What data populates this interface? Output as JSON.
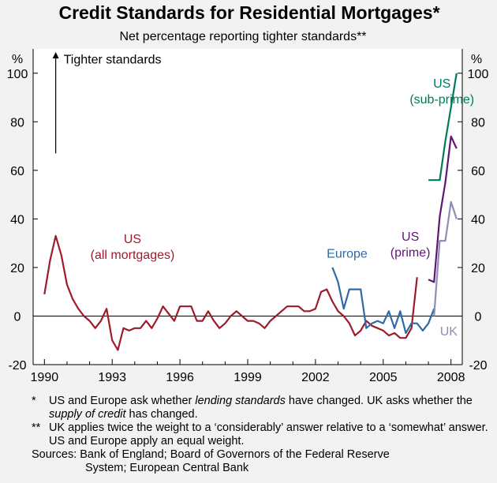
{
  "chart_data": {
    "type": "line",
    "title": "Credit Standards for Residential Mortgages*",
    "subtitle": "Net percentage reporting tighter standards**",
    "ylabel_left": "%",
    "ylabel_right": "%",
    "ylim": [
      -20,
      110
    ],
    "yticks": [
      -20,
      0,
      20,
      40,
      60,
      80,
      100
    ],
    "xlim": [
      1989.5,
      2008.5
    ],
    "xticks": [
      1990,
      1993,
      1996,
      1999,
      2002,
      2005,
      2008
    ],
    "annotation": "Tighter standards",
    "series": [
      {
        "name": "US (all mortgages)",
        "label_lines": [
          "US",
          "(all mortgages)"
        ],
        "color": "#9e1c2a",
        "x": [
          1990.0,
          1990.25,
          1990.5,
          1990.75,
          1991.0,
          1991.25,
          1991.5,
          1991.75,
          1992.0,
          1992.25,
          1992.5,
          1992.75,
          1993.0,
          1993.25,
          1993.5,
          1993.75,
          1994.0,
          1994.25,
          1994.5,
          1994.75,
          1995.0,
          1995.25,
          1995.5,
          1995.75,
          1996.0,
          1996.25,
          1996.5,
          1996.75,
          1997.0,
          1997.25,
          1997.5,
          1997.75,
          1998.0,
          1998.25,
          1998.5,
          1998.75,
          1999.0,
          1999.25,
          1999.5,
          1999.75,
          2000.0,
          2000.25,
          2000.5,
          2000.75,
          2001.0,
          2001.25,
          2001.5,
          2001.75,
          2002.0,
          2002.25,
          2002.5,
          2002.75,
          2003.0,
          2003.25,
          2003.5,
          2003.75,
          2004.0,
          2004.25,
          2004.5,
          2004.75,
          2005.0,
          2005.25,
          2005.5,
          2005.75,
          2006.0,
          2006.25,
          2006.5
        ],
        "values": [
          9,
          23,
          33,
          25,
          13,
          7,
          3,
          0,
          -2,
          -5,
          -2,
          3,
          -10,
          -14,
          -5,
          -6,
          -5,
          -5,
          -2,
          -5,
          -1,
          4,
          1,
          -2,
          4,
          4,
          4,
          -2,
          -2,
          2,
          -2,
          -5,
          -3,
          0,
          2,
          0,
          -2,
          -2,
          -3,
          -5,
          -2,
          0,
          2,
          4,
          4,
          4,
          2,
          2,
          3,
          10,
          11,
          6,
          2,
          0,
          -3,
          -8,
          -6,
          -2,
          -4,
          -5,
          -6,
          -8,
          -7,
          -9,
          -9,
          -5,
          16
        ]
      },
      {
        "name": "Europe",
        "label_lines": [
          "Europe"
        ],
        "color": "#2e6aa8",
        "x": [
          2002.75,
          2003.0,
          2003.25,
          2003.5,
          2003.75,
          2004.0,
          2004.25,
          2004.5,
          2004.75,
          2005.0,
          2005.25,
          2005.5,
          2005.75,
          2006.0,
          2006.25,
          2006.5,
          2006.75,
          2007.0,
          2007.25
        ],
        "values": [
          20,
          14,
          3,
          11,
          11,
          11,
          -5,
          -3,
          -2,
          -3,
          2,
          -5,
          2,
          -7,
          -3,
          -3,
          -6,
          -3,
          3
        ]
      },
      {
        "name": "US (sub-prime)",
        "label_lines": [
          "US",
          "(sub-prime)"
        ],
        "color": "#007a5e",
        "x": [
          2007.0,
          2007.25,
          2007.5,
          2007.75,
          2008.0,
          2008.25
        ],
        "values": [
          56,
          56,
          56,
          72,
          86,
          100
        ]
      },
      {
        "name": "US (prime)",
        "label_lines": [
          "US",
          "(prime)"
        ],
        "color": "#5e1773",
        "x": [
          2007.0,
          2007.25,
          2007.5,
          2007.75,
          2008.0,
          2008.25
        ],
        "values": [
          15,
          14,
          41,
          55,
          74,
          69
        ]
      },
      {
        "name": "UK",
        "label_lines": [
          "UK"
        ],
        "color": "#8c8fb5",
        "x": [
          2007.25,
          2007.5,
          2007.75,
          2008.0,
          2008.25
        ],
        "values": [
          0,
          31,
          31,
          47,
          40
        ]
      }
    ]
  },
  "notes": [
    {
      "mark": "*",
      "text_parts": [
        "US and Europe ask whether ",
        "lending standards",
        " have changed. UK asks whether the ",
        "supply of credit",
        " has changed."
      ]
    },
    {
      "mark": "**",
      "text": "UK applies twice the weight to a ‘considerably’ answer relative to a ‘somewhat’ answer. US and Europe apply an equal weight."
    }
  ],
  "sources": {
    "label": "Sources: ",
    "line1": "Bank of England; Board of Governors of the Federal Reserve",
    "line2": "System; European Central Bank"
  }
}
